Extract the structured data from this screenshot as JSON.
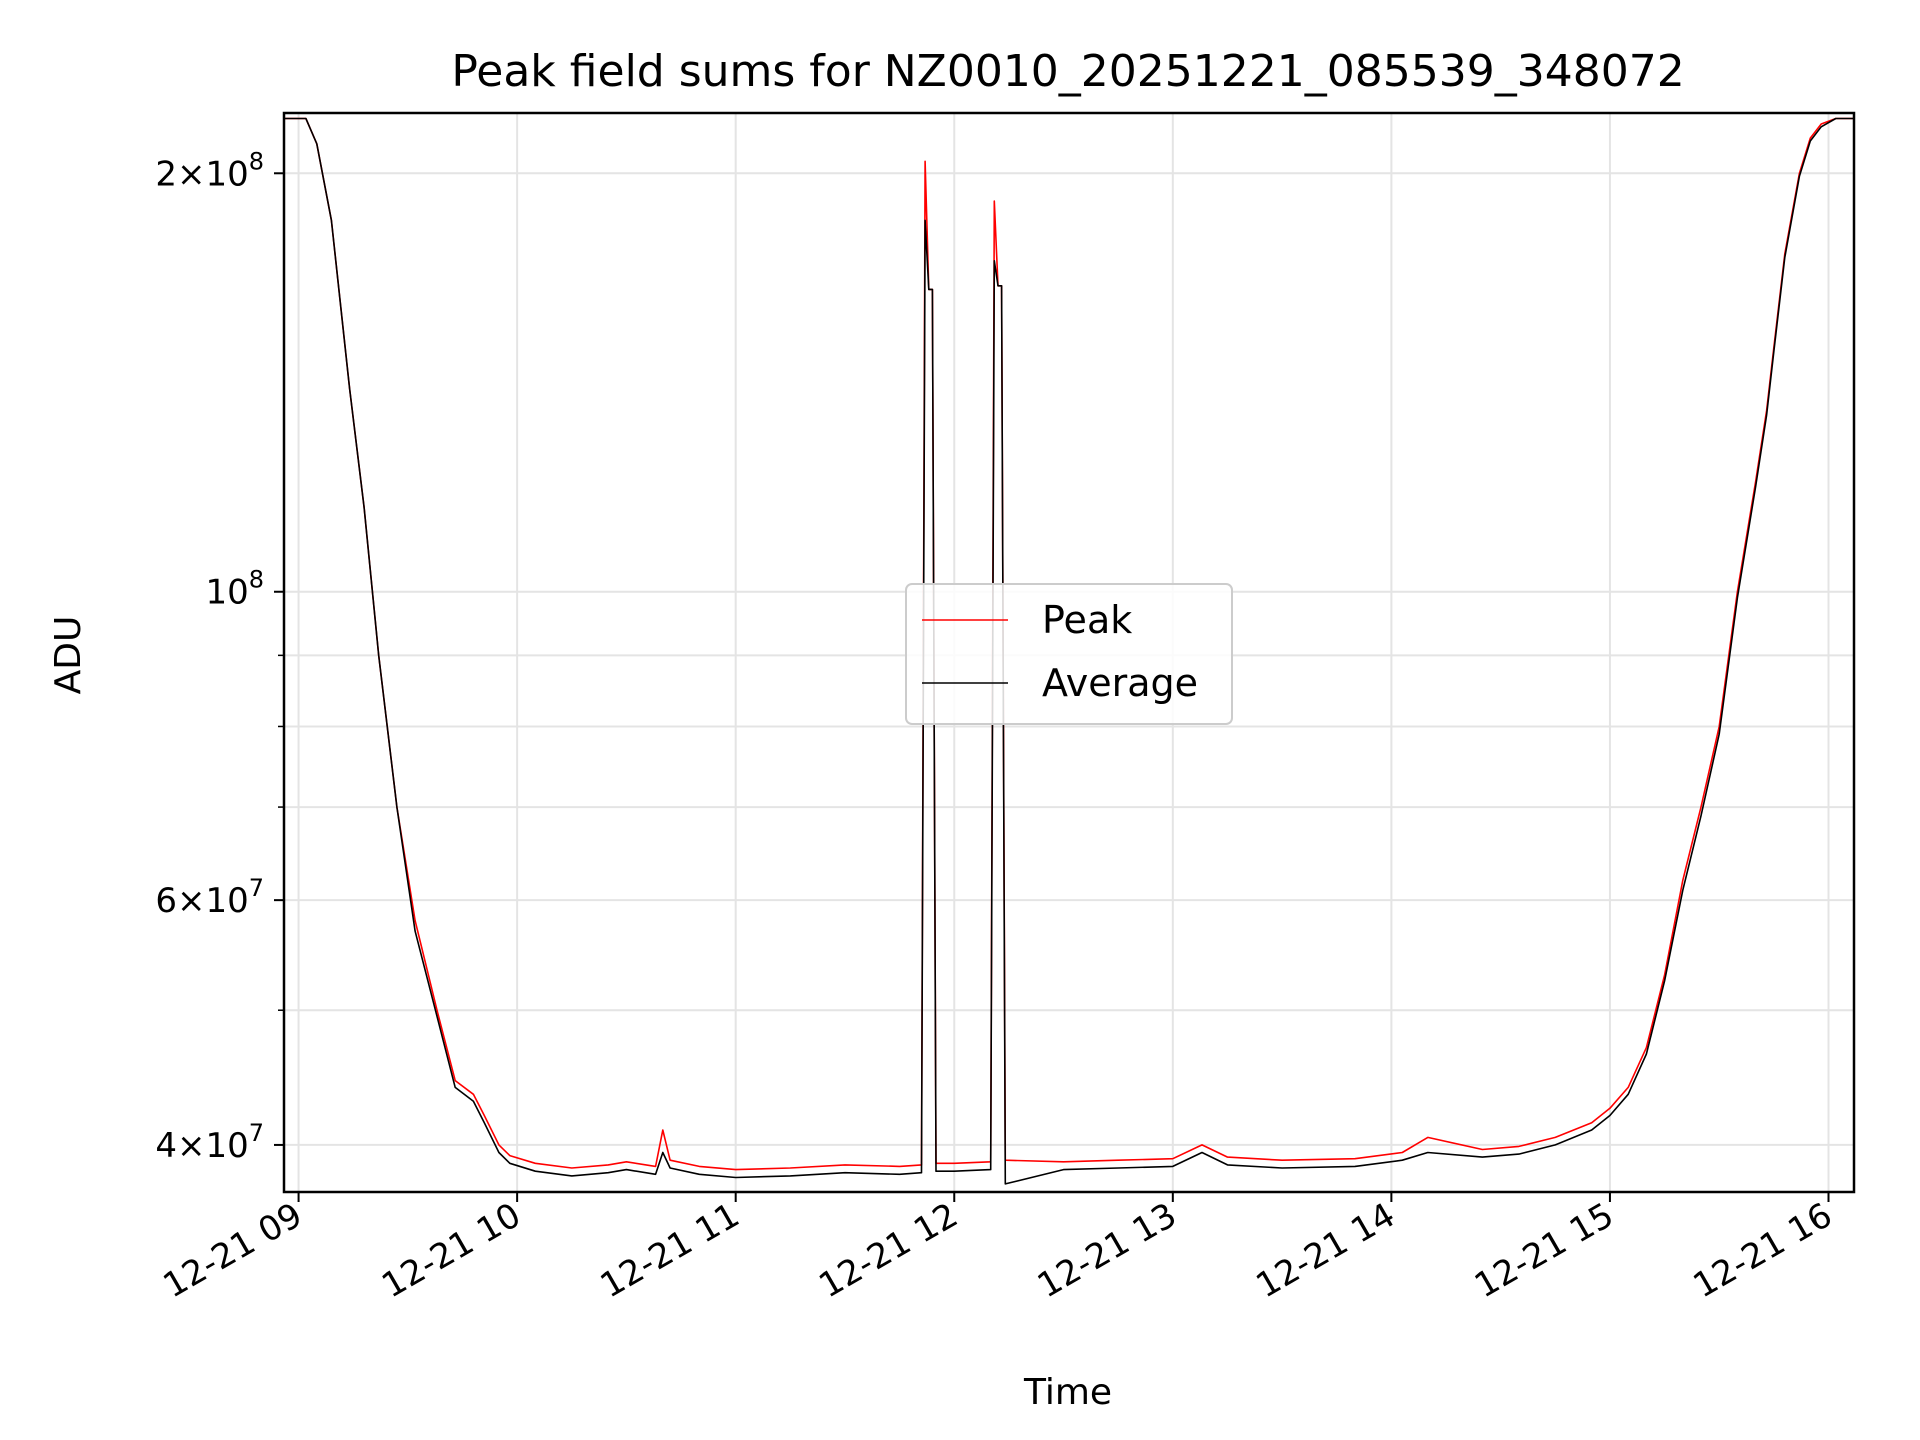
{
  "chart_data": {
    "type": "line",
    "title": "Peak field sums for NZ0010_20251221_085539_348072",
    "xlabel": "Time",
    "ylabel": "ADU",
    "xlim": [
      "2025-12-21 08:56",
      "2025-12-21 16:07"
    ],
    "ylim": [
      37000000,
      221000000
    ],
    "yscale": "log",
    "grid": true,
    "legend_position": "center",
    "x_ticks": [
      "12-21 09",
      "12-21 10",
      "12-21 11",
      "12-21 12",
      "12-21 13",
      "12-21 14",
      "12-21 15",
      "12-21 16"
    ],
    "x_tick_times": [
      "2025-12-21 09:00",
      "2025-12-21 10:00",
      "2025-12-21 11:00",
      "2025-12-21 12:00",
      "2025-12-21 13:00",
      "2025-12-21 14:00",
      "2025-12-21 15:00",
      "2025-12-21 16:00"
    ],
    "y_ticks": [
      {
        "value": 200000000,
        "mantissa": "2",
        "exponent": "8"
      },
      {
        "value": 100000000,
        "mantissa": "",
        "exponent": "8"
      },
      {
        "value": 60000000,
        "mantissa": "6",
        "exponent": "7"
      },
      {
        "value": 40000000,
        "mantissa": "4",
        "exponent": "7"
      }
    ],
    "y_minor_ticks": [
      50000000,
      70000000,
      80000000,
      90000000
    ],
    "series": [
      {
        "name": "Peak",
        "color": "#ff0000",
        "x": [
          "2025-12-21 08:56",
          "2025-12-21 09:02",
          "2025-12-21 09:05",
          "2025-12-21 09:09",
          "2025-12-21 09:14",
          "2025-12-21 09:18",
          "2025-12-21 09:22",
          "2025-12-21 09:27",
          "2025-12-21 09:32",
          "2025-12-21 09:38",
          "2025-12-21 09:43",
          "2025-12-21 09:48",
          "2025-12-21 09:51",
          "2025-12-21 09:55",
          "2025-12-21 09:58",
          "2025-12-21 10:05",
          "2025-12-21 10:15",
          "2025-12-21 10:25",
          "2025-12-21 10:30",
          "2025-12-21 10:38",
          "2025-12-21 10:40",
          "2025-12-21 10:42",
          "2025-12-21 10:50",
          "2025-12-21 11:00",
          "2025-12-21 11:15",
          "2025-12-21 11:30",
          "2025-12-21 11:45",
          "2025-12-21 11:51",
          "2025-12-21 11:52",
          "2025-12-21 11:53",
          "2025-12-21 11:54",
          "2025-12-21 11:55",
          "2025-12-21 12:00",
          "2025-12-21 12:10",
          "2025-12-21 12:11",
          "2025-12-21 12:12",
          "2025-12-21 12:13",
          "2025-12-21 12:14",
          "2025-12-21 12:30",
          "2025-12-21 12:45",
          "2025-12-21 13:00",
          "2025-12-21 13:08",
          "2025-12-21 13:15",
          "2025-12-21 13:30",
          "2025-12-21 13:50",
          "2025-12-21 14:03",
          "2025-12-21 14:10",
          "2025-12-21 14:25",
          "2025-12-21 14:35",
          "2025-12-21 14:45",
          "2025-12-21 14:55",
          "2025-12-21 15:00",
          "2025-12-21 15:05",
          "2025-12-21 15:10",
          "2025-12-21 15:15",
          "2025-12-21 15:20",
          "2025-12-21 15:25",
          "2025-12-21 15:30",
          "2025-12-21 15:35",
          "2025-12-21 15:40",
          "2025-12-21 15:43",
          "2025-12-21 15:45",
          "2025-12-21 15:48",
          "2025-12-21 15:52",
          "2025-12-21 15:55",
          "2025-12-21 15:58",
          "2025-12-21 16:02",
          "2025-12-21 16:07"
        ],
        "values": [
          219000000,
          219000000,
          210000000,
          185000000,
          140000000,
          115000000,
          90000000,
          70000000,
          58000000,
          50000000,
          44500000,
          43500000,
          42000000,
          40000000,
          39300000,
          38800000,
          38500000,
          38700000,
          38900000,
          38600000,
          41000000,
          39000000,
          38600000,
          38400000,
          38500000,
          38700000,
          38600000,
          38700000,
          204000000,
          165000000,
          165000000,
          38800000,
          38800000,
          38900000,
          191000000,
          166000000,
          166000000,
          39000000,
          38900000,
          39000000,
          39100000,
          40000000,
          39200000,
          39000000,
          39100000,
          39500000,
          40500000,
          39700000,
          39900000,
          40500000,
          41500000,
          42500000,
          44000000,
          47000000,
          53000000,
          62000000,
          70000000,
          80000000,
          100000000,
          120000000,
          135000000,
          150000000,
          175000000,
          200000000,
          212000000,
          217000000,
          219000000,
          219000000
        ]
      },
      {
        "name": "Average",
        "color": "#000000",
        "x": [
          "2025-12-21 08:56",
          "2025-12-21 09:02",
          "2025-12-21 09:05",
          "2025-12-21 09:09",
          "2025-12-21 09:14",
          "2025-12-21 09:18",
          "2025-12-21 09:22",
          "2025-12-21 09:27",
          "2025-12-21 09:32",
          "2025-12-21 09:38",
          "2025-12-21 09:43",
          "2025-12-21 09:48",
          "2025-12-21 09:51",
          "2025-12-21 09:55",
          "2025-12-21 09:58",
          "2025-12-21 10:05",
          "2025-12-21 10:15",
          "2025-12-21 10:25",
          "2025-12-21 10:30",
          "2025-12-21 10:38",
          "2025-12-21 10:40",
          "2025-12-21 10:42",
          "2025-12-21 10:50",
          "2025-12-21 11:00",
          "2025-12-21 11:15",
          "2025-12-21 11:30",
          "2025-12-21 11:45",
          "2025-12-21 11:51",
          "2025-12-21 11:52",
          "2025-12-21 11:53",
          "2025-12-21 11:54",
          "2025-12-21 11:55",
          "2025-12-21 12:00",
          "2025-12-21 12:10",
          "2025-12-21 12:11",
          "2025-12-21 12:12",
          "2025-12-21 12:13",
          "2025-12-21 12:14",
          "2025-12-21 12:30",
          "2025-12-21 12:45",
          "2025-12-21 13:00",
          "2025-12-21 13:08",
          "2025-12-21 13:15",
          "2025-12-21 13:30",
          "2025-12-21 13:50",
          "2025-12-21 14:03",
          "2025-12-21 14:10",
          "2025-12-21 14:25",
          "2025-12-21 14:35",
          "2025-12-21 14:45",
          "2025-12-21 14:55",
          "2025-12-21 15:00",
          "2025-12-21 15:05",
          "2025-12-21 15:10",
          "2025-12-21 15:15",
          "2025-12-21 15:20",
          "2025-12-21 15:25",
          "2025-12-21 15:30",
          "2025-12-21 15:35",
          "2025-12-21 15:40",
          "2025-12-21 15:43",
          "2025-12-21 15:45",
          "2025-12-21 15:48",
          "2025-12-21 15:52",
          "2025-12-21 15:55",
          "2025-12-21 15:58",
          "2025-12-21 16:02",
          "2025-12-21 16:07"
        ],
        "values": [
          219000000,
          219000000,
          210000000,
          185000000,
          140000000,
          115000000,
          90000000,
          70000000,
          57000000,
          49500000,
          44000000,
          43000000,
          41500000,
          39500000,
          38800000,
          38300000,
          38000000,
          38200000,
          38400000,
          38100000,
          39500000,
          38500000,
          38100000,
          37900000,
          38000000,
          38200000,
          38100000,
          38200000,
          185000000,
          165000000,
          165000000,
          38300000,
          38300000,
          38400000,
          173000000,
          166000000,
          166000000,
          37500000,
          38400000,
          38500000,
          38600000,
          39500000,
          38700000,
          38500000,
          38600000,
          39000000,
          39500000,
          39200000,
          39400000,
          40000000,
          41000000,
          42000000,
          43500000,
          46500000,
          52500000,
          61000000,
          69000000,
          79000000,
          99000000,
          119000000,
          134000000,
          149000000,
          174000000,
          199000000,
          211000000,
          216000000,
          219000000,
          219000000
        ]
      }
    ]
  }
}
